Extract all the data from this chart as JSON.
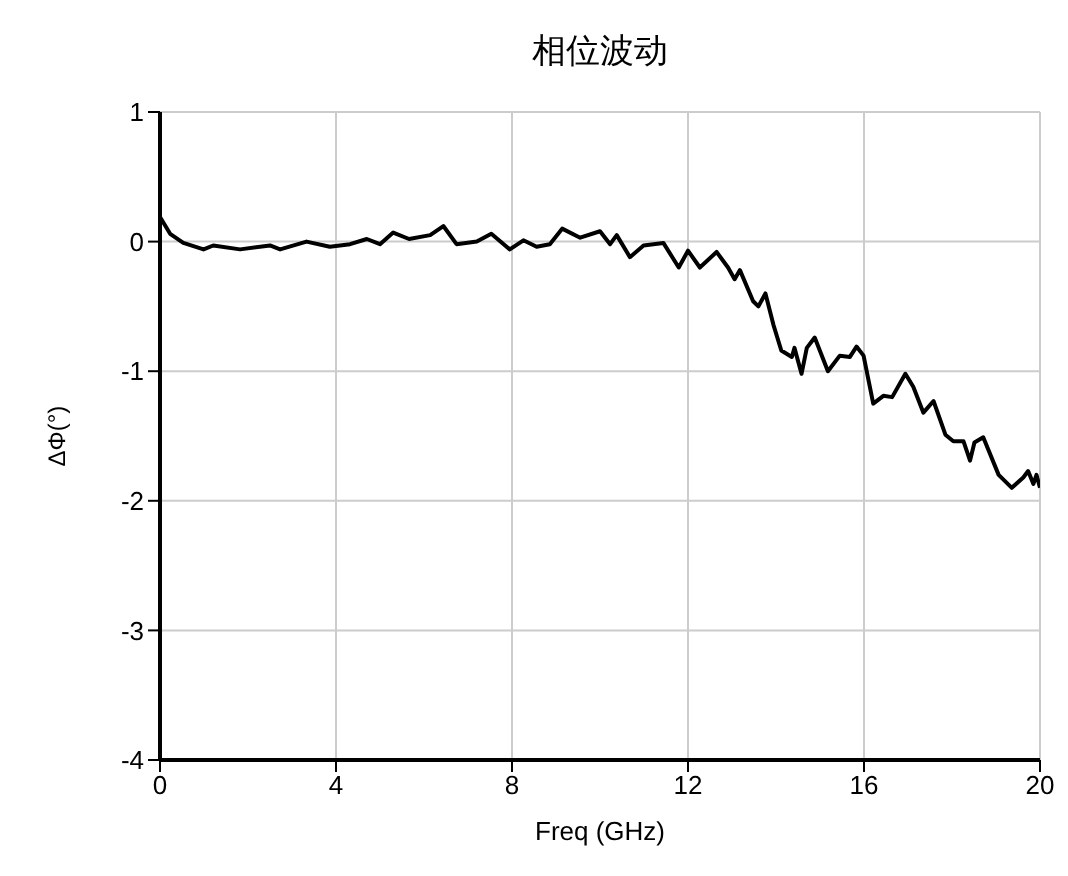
{
  "chart_data": {
    "type": "line",
    "title": "相位波动",
    "xlabel": "Freq (GHz)",
    "ylabel": "ΔΦ(°)",
    "xlim": [
      0,
      20
    ],
    "xticks": [
      0,
      4,
      8,
      12,
      16,
      20
    ],
    "ylim": [
      -4,
      1
    ],
    "yticks": [
      -4,
      -3,
      -2,
      -1,
      0,
      1
    ],
    "grid": true,
    "line_style": "solid",
    "marker": "none",
    "x": [
      0,
      0.23,
      0.53,
      0.99,
      1.21,
      1.82,
      2.5,
      2.73,
      3.33,
      3.86,
      4.32,
      4.7,
      5.0,
      5.3,
      5.66,
      6.14,
      6.44,
      6.74,
      7.2,
      7.53,
      7.95,
      8.26,
      8.56,
      8.86,
      9.14,
      9.55,
      10.0,
      10.23,
      10.38,
      10.68,
      10.99,
      11.44,
      11.79,
      12.0,
      12.27,
      12.65,
      12.91,
      13.06,
      13.18,
      13.48,
      13.6,
      13.76,
      13.94,
      14.12,
      14.36,
      14.42,
      14.58,
      14.7,
      14.88,
      15.18,
      15.45,
      15.68,
      15.83,
      15.99,
      16.21,
      16.44,
      16.64,
      16.94,
      17.12,
      17.35,
      17.58,
      17.85,
      18.03,
      18.26,
      18.41,
      18.51,
      18.71,
      19.06,
      19.36,
      19.62,
      19.73,
      19.85,
      19.92,
      20.0
    ],
    "series": [
      {
        "color": "#000000",
        "values": [
          0.19,
          0.06,
          -0.01,
          -0.06,
          -0.03,
          -0.06,
          -0.03,
          -0.06,
          0.0,
          -0.04,
          -0.02,
          0.02,
          -0.02,
          0.07,
          0.02,
          0.05,
          0.12,
          -0.02,
          0.0,
          0.06,
          -0.06,
          0.01,
          -0.04,
          -0.02,
          0.1,
          0.03,
          0.08,
          -0.02,
          0.05,
          -0.12,
          -0.03,
          -0.01,
          -0.2,
          -0.07,
          -0.2,
          -0.08,
          -0.2,
          -0.29,
          -0.22,
          -0.46,
          -0.5,
          -0.4,
          -0.64,
          -0.84,
          -0.89,
          -0.82,
          -1.02,
          -0.82,
          -0.74,
          -1.0,
          -0.88,
          -0.89,
          -0.81,
          -0.88,
          -1.25,
          -1.19,
          -1.2,
          -1.02,
          -1.12,
          -1.32,
          -1.23,
          -1.49,
          -1.54,
          -1.54,
          -1.69,
          -1.55,
          -1.51,
          -1.8,
          -1.9,
          -1.82,
          -1.77,
          -1.87,
          -1.8,
          -1.9
        ]
      }
    ]
  }
}
